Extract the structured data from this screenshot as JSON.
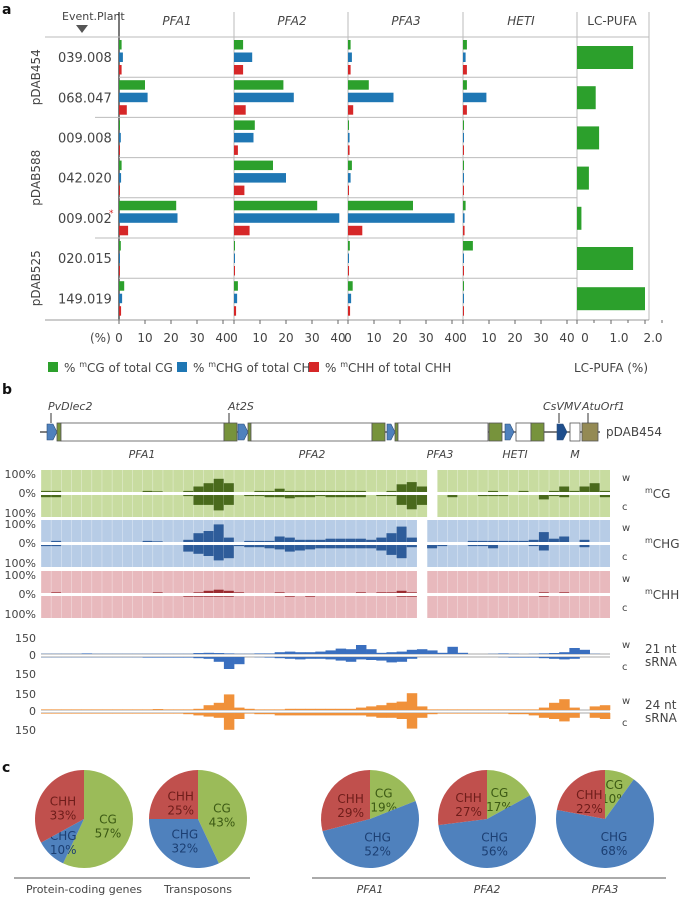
{
  "panels": {
    "a": "a",
    "b": "b",
    "c": "c"
  },
  "chart_data": [
    {
      "type": "bar",
      "panel": "a",
      "orientation": "horizontal",
      "header_left": "Event.Plant",
      "columns": [
        "PFA1",
        "PFA2",
        "PFA3",
        "HETI"
      ],
      "lc_column": "LC-PUFA",
      "groups": [
        {
          "name": "pDAB454",
          "events": [
            "039.008",
            "068.047"
          ]
        },
        {
          "name": "pDAB588",
          "events": [
            "009.008",
            "042.020",
            "009.002"
          ]
        },
        {
          "name": "pDAB525",
          "events": [
            "020.015",
            "149.019"
          ]
        }
      ],
      "events": [
        {
          "id": "039.008",
          "marked": false,
          "PFA1": [
            1,
            1.5,
            1
          ],
          "PFA2": [
            3.5,
            7,
            3.5
          ],
          "PFA3": [
            1,
            1.5,
            1
          ],
          "HETI": [
            1.5,
            1,
            1.5
          ],
          "lc_pufa": 1.65
        },
        {
          "id": "068.047",
          "marked": false,
          "PFA1": [
            10,
            11,
            3
          ],
          "PFA2": [
            19,
            23,
            4.5
          ],
          "PFA3": [
            8,
            17.5,
            2
          ],
          "HETI": [
            1.5,
            9,
            1.5
          ],
          "lc_pufa": 0.55
        },
        {
          "id": "009.008",
          "marked": false,
          "PFA1": [
            0.2,
            0.7,
            0.2
          ],
          "PFA2": [
            8,
            7.5,
            1.5
          ],
          "PFA3": [
            0.3,
            0.6,
            0.6
          ],
          "HETI": [
            0.2,
            0.2,
            0.2
          ],
          "lc_pufa": 0.65
        },
        {
          "id": "042.020",
          "marked": false,
          "PFA1": [
            1,
            0.8,
            0.3
          ],
          "PFA2": [
            15,
            20,
            4
          ],
          "PFA3": [
            1.5,
            1,
            0.3
          ],
          "HETI": [
            0.2,
            0.2,
            0.2
          ],
          "lc_pufa": 0.35
        },
        {
          "id": "009.002",
          "marked": true,
          "PFA1": [
            22,
            22.5,
            3.5
          ],
          "PFA2": [
            32,
            40.5,
            6
          ],
          "PFA3": [
            25,
            41,
            5.5
          ],
          "HETI": [
            1,
            0.6,
            0.6
          ],
          "lc_pufa": 0.13
        },
        {
          "id": "020.015",
          "marked": false,
          "PFA1": [
            0.7,
            0.2,
            0.2
          ],
          "PFA2": [
            0.2,
            0.2,
            0.2
          ],
          "PFA3": [
            0.7,
            0.2,
            0.2
          ],
          "HETI": [
            3.8,
            0.2,
            0.2
          ],
          "lc_pufa": 1.65
        },
        {
          "id": "149.019",
          "marked": false,
          "PFA1": [
            2,
            1.2,
            0.8
          ],
          "PFA2": [
            1.5,
            1.2,
            0.8
          ],
          "PFA3": [
            1.8,
            1.2,
            0.8
          ],
          "HETI": [
            0.2,
            0.2,
            0.2
          ],
          "lc_pufa": 2.0
        }
      ],
      "series": [
        {
          "name": "% mCG of total CG",
          "prefix": "% ",
          "sup": "m",
          "rest": "CG of total CG",
          "color": "#2ca02c"
        },
        {
          "name": "% mCHG of total CHG",
          "prefix": "% ",
          "sup": "m",
          "rest": "CHG of total CHG",
          "color": "#1f77b4"
        },
        {
          "name": "% mCHH of total CHH",
          "prefix": "% ",
          "sup": "m",
          "rest": "CHH of total CHH",
          "color": "#d62728"
        }
      ],
      "xlim": [
        0,
        40
      ],
      "xticks": [
        "0",
        "10",
        "20",
        "30",
        "40"
      ],
      "xunit": "(%)",
      "lc_xlim": [
        0,
        2.0
      ],
      "lc_xticks": [
        "0",
        "1.0",
        "2.0"
      ],
      "lc_xlabel": "LC-PUFA (%)",
      "asterisk": "*"
    },
    {
      "type": "area",
      "panel": "b",
      "construct": {
        "name": "pDAB454",
        "labels_above": [
          "PvDlec2",
          "At2S",
          "CsVMV",
          "AtuOrf1"
        ],
        "labels_below": [
          "PFA1",
          "PFA2",
          "PFA3",
          "HETI",
          "M"
        ]
      },
      "methylation_tracks": [
        {
          "context": "CG",
          "sup": "m",
          "bg": "#c8dca0",
          "fg": "#4a6a1c",
          "w": [
            5,
            5,
            0,
            0,
            0,
            0,
            0,
            0,
            0,
            0,
            5,
            3,
            0,
            0,
            5,
            25,
            40,
            60,
            40,
            0,
            0,
            5,
            5,
            15,
            5,
            5,
            5,
            5,
            5,
            5,
            5,
            5,
            0,
            0,
            5,
            35,
            45,
            25,
            null,
            0,
            0,
            0,
            0,
            0,
            5,
            0,
            0,
            5,
            0,
            0,
            5,
            25,
            5,
            25,
            40,
            5,
            5,
            5,
            8,
            0,
            0,
            0,
            0,
            0,
            0,
            0,
            0,
            0,
            0,
            0
          ],
          "c": [
            10,
            10,
            0,
            0,
            0,
            0,
            0,
            0,
            0,
            0,
            0,
            0,
            0,
            0,
            5,
            45,
            45,
            70,
            45,
            0,
            5,
            5,
            10,
            10,
            15,
            10,
            10,
            5,
            10,
            10,
            10,
            10,
            0,
            5,
            5,
            45,
            65,
            45,
            null,
            0,
            10,
            0,
            0,
            5,
            5,
            5,
            0,
            0,
            0,
            20,
            5,
            10,
            0,
            0,
            0,
            10,
            0,
            0,
            0,
            0,
            0,
            0,
            0,
            0,
            0,
            0,
            0,
            0,
            0,
            0
          ]
        },
        {
          "context": "CHG",
          "sup": "m",
          "bg": "#b7cce6",
          "fg": "#2e5c9a",
          "w": [
            0,
            5,
            0,
            0,
            0,
            0,
            0,
            0,
            0,
            0,
            5,
            3,
            0,
            0,
            10,
            40,
            50,
            80,
            20,
            0,
            5,
            5,
            5,
            25,
            20,
            10,
            10,
            10,
            15,
            15,
            15,
            15,
            10,
            20,
            40,
            70,
            20,
            null,
            0,
            0,
            0,
            0,
            5,
            5,
            5,
            5,
            5,
            5,
            10,
            45,
            15,
            25,
            0,
            10,
            0,
            0,
            0,
            0,
            0,
            0,
            0,
            0,
            0,
            0,
            0,
            0,
            0,
            0,
            0,
            0
          ],
          "c": [
            5,
            5,
            0,
            0,
            0,
            0,
            0,
            0,
            0,
            0,
            0,
            0,
            0,
            0,
            30,
            40,
            50,
            70,
            60,
            5,
            10,
            10,
            15,
            20,
            30,
            25,
            20,
            15,
            15,
            15,
            15,
            15,
            15,
            25,
            45,
            60,
            10,
            null,
            15,
            5,
            0,
            0,
            5,
            5,
            15,
            0,
            0,
            0,
            5,
            25,
            0,
            0,
            0,
            10,
            0,
            0,
            0,
            0,
            0,
            0,
            0,
            0,
            0,
            0,
            0,
            0,
            0,
            0,
            0,
            0
          ]
        },
        {
          "context": "CHH",
          "sup": "m",
          "bg": "#e8b9bd",
          "fg": "#9a2b30",
          "w": [
            0,
            3,
            0,
            0,
            0,
            0,
            0,
            0,
            0,
            0,
            0,
            3,
            0,
            0,
            0,
            3,
            10,
            15,
            10,
            3,
            0,
            0,
            0,
            3,
            0,
            0,
            0,
            0,
            0,
            0,
            0,
            3,
            0,
            3,
            3,
            10,
            3,
            null,
            0,
            0,
            0,
            0,
            0,
            0,
            0,
            0,
            0,
            0,
            0,
            3,
            0,
            3,
            0,
            0,
            0,
            0,
            0,
            0,
            0,
            0,
            0,
            0,
            0,
            0,
            0,
            0,
            0,
            0,
            0,
            0
          ],
          "c": [
            0,
            0,
            0,
            0,
            0,
            0,
            0,
            0,
            0,
            0,
            0,
            0,
            0,
            0,
            3,
            3,
            3,
            3,
            3,
            0,
            0,
            0,
            0,
            0,
            3,
            0,
            3,
            0,
            0,
            0,
            0,
            0,
            0,
            0,
            0,
            3,
            3,
            null,
            0,
            0,
            0,
            0,
            0,
            0,
            0,
            0,
            0,
            0,
            0,
            3,
            0,
            0,
            0,
            0,
            0,
            0,
            0,
            0,
            0,
            0,
            0,
            0,
            0,
            0,
            0,
            0,
            0,
            0,
            0,
            0
          ]
        }
      ],
      "methylation_ylabels": [
        "100%",
        "0%",
        "100%"
      ],
      "strand_labels": [
        "w",
        "c"
      ],
      "srna_tracks": [
        {
          "label_line1": "21 nt",
          "label_line2": "sRNA",
          "color": "#3a6fbf",
          "w": [
            2,
            2,
            2,
            2,
            5,
            2,
            2,
            2,
            2,
            2,
            2,
            2,
            2,
            2,
            2,
            8,
            10,
            8,
            5,
            2,
            2,
            5,
            5,
            15,
            20,
            15,
            15,
            20,
            30,
            45,
            40,
            75,
            40,
            10,
            15,
            20,
            35,
            40,
            30,
            10,
            60,
            10,
            0,
            0,
            2,
            5,
            2,
            0,
            2,
            5,
            8,
            15,
            50,
            35,
            2,
            0,
            2,
            25,
            55,
            0,
            0,
            0,
            0,
            0,
            0,
            0,
            0,
            0,
            0,
            0
          ],
          "c": [
            2,
            2,
            2,
            2,
            2,
            2,
            2,
            2,
            2,
            2,
            5,
            5,
            5,
            5,
            5,
            10,
            15,
            40,
            100,
            60,
            0,
            2,
            5,
            10,
            15,
            20,
            15,
            15,
            20,
            30,
            40,
            20,
            25,
            30,
            45,
            40,
            15,
            0,
            0,
            0,
            0,
            0,
            0,
            0,
            0,
            2,
            5,
            5,
            5,
            10,
            15,
            20,
            15,
            0,
            0,
            0,
            2,
            10,
            15,
            0,
            0,
            0,
            0,
            0,
            0,
            0,
            0,
            0,
            0,
            0
          ]
        },
        {
          "label_line1": "24 nt",
          "label_line2": "sRNA",
          "color": "#f0913a",
          "w": [
            5,
            5,
            5,
            5,
            5,
            5,
            5,
            5,
            5,
            5,
            5,
            8,
            5,
            5,
            5,
            10,
            40,
            60,
            130,
            20,
            10,
            5,
            5,
            5,
            10,
            10,
            10,
            10,
            10,
            10,
            10,
            20,
            30,
            40,
            60,
            70,
            140,
            30,
            5,
            5,
            5,
            5,
            5,
            5,
            5,
            5,
            5,
            5,
            5,
            20,
            60,
            90,
            20,
            0,
            30,
            40,
            70,
            100,
            10,
            0,
            0,
            0,
            0,
            0,
            0,
            0,
            0,
            0,
            0,
            0
          ],
          "c": [
            5,
            5,
            5,
            5,
            5,
            5,
            5,
            5,
            5,
            5,
            5,
            5,
            5,
            5,
            10,
            20,
            30,
            40,
            140,
            50,
            5,
            10,
            10,
            20,
            20,
            20,
            20,
            20,
            20,
            20,
            20,
            20,
            30,
            40,
            40,
            50,
            130,
            40,
            10,
            5,
            5,
            5,
            5,
            5,
            5,
            5,
            10,
            10,
            20,
            40,
            50,
            70,
            40,
            0,
            40,
            50,
            60,
            70,
            20,
            0,
            0,
            0,
            0,
            0,
            0,
            0,
            0,
            0,
            0,
            0
          ]
        }
      ],
      "srna_ylabels": [
        "150",
        "0",
        "150"
      ]
    },
    {
      "type": "pie",
      "panel": "c",
      "pies": [
        {
          "name": "Protein-coding genes",
          "italic": false,
          "slices": [
            {
              "label": "CG",
              "value": 57
            },
            {
              "label": "CHG",
              "value": 10
            },
            {
              "label": "CHH",
              "value": 33
            }
          ]
        },
        {
          "name": "Transposons",
          "italic": false,
          "slices": [
            {
              "label": "CG",
              "value": 43
            },
            {
              "label": "CHG",
              "value": 32
            },
            {
              "label": "CHH",
              "value": 25
            }
          ]
        },
        {
          "name": "PFA1",
          "italic": true,
          "slices": [
            {
              "label": "CG",
              "value": 19
            },
            {
              "label": "CHG",
              "value": 52
            },
            {
              "label": "CHH",
              "value": 29
            }
          ]
        },
        {
          "name": "PFA2",
          "italic": true,
          "slices": [
            {
              "label": "CG",
              "value": 17
            },
            {
              "label": "CHG",
              "value": 56
            },
            {
              "label": "CHH",
              "value": 27
            }
          ]
        },
        {
          "name": "PFA3",
          "italic": true,
          "slices": [
            {
              "label": "CG",
              "value": 10
            },
            {
              "label": "CHG",
              "value": 68
            },
            {
              "label": "CHH",
              "value": 22
            }
          ]
        }
      ],
      "colors": {
        "CG": "#9bbb59",
        "CHG": "#4f81bd",
        "CHH": "#c0504d"
      }
    }
  ]
}
